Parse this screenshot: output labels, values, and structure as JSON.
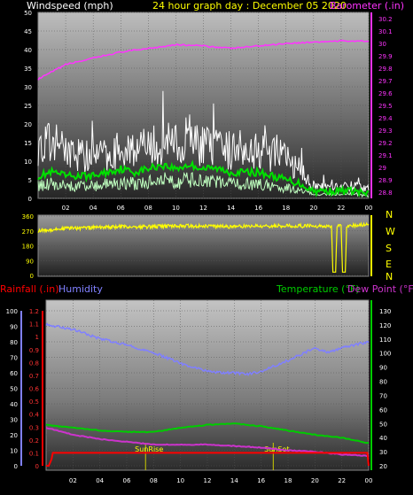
{
  "header": {
    "left": "Windspeed (mph)",
    "center": "24 hour graph day : December 05 2020",
    "right": "Barometer (.in)"
  },
  "labels": {
    "rainfall": "Rainfall (.in)",
    "humidity": "Humidity",
    "temperature": "Temperature (°F)",
    "dewpoint": "Dew Point (°F)",
    "sunrise": "SunRise",
    "sunset": "SunSet"
  },
  "colors": {
    "wind_gust": "#ffffff",
    "wind_avg": "#00e000",
    "barometer": "#ff33ff",
    "direction": "#ffff00",
    "rain": "#ff0000",
    "humidity": "#8080ff",
    "temperature": "#00cc00",
    "dewpoint": "#cc33cc",
    "header_left": "#ffffff",
    "header_center": "#ffff00",
    "header_right": "#ff33ff"
  },
  "chart_data": [
    {
      "type": "line",
      "title": "24 hour graph day : December 05 2020",
      "x_ticks": [
        "02",
        "04",
        "06",
        "08",
        "10",
        "12",
        "14",
        "16",
        "18",
        "20",
        "22",
        "00"
      ],
      "y_left": {
        "label": "Windspeed (mph)",
        "ticks": [
          0,
          5,
          10,
          15,
          20,
          25,
          30,
          35,
          40,
          45,
          50
        ],
        "range": [
          0,
          50
        ]
      },
      "y_right": {
        "label": "Barometer (.in)",
        "ticks": [
          "28.8",
          "28.9",
          "29",
          "29.1",
          "29.2",
          "29.3",
          "29.4",
          "29.5",
          "29.6",
          "29.7",
          "29.8",
          "29.9",
          "30",
          "30.1",
          "30.2"
        ],
        "range": [
          28.75,
          30.25
        ]
      },
      "series": [
        {
          "name": "Windspeed (mph)",
          "x_hours": [
            0,
            1,
            2,
            3,
            4,
            5,
            6,
            7,
            8,
            9,
            10,
            11,
            12,
            13,
            14,
            15,
            16,
            17,
            18,
            19,
            20,
            21,
            22,
            23,
            24
          ],
          "values": [
            12,
            14,
            12,
            11,
            10,
            11,
            12,
            13,
            12,
            14,
            13,
            15,
            13,
            12,
            12,
            13,
            12,
            11,
            10,
            7,
            3,
            3,
            3,
            3,
            2
          ]
        },
        {
          "name": "Windspeed avg",
          "x_hours": [
            0,
            1,
            2,
            3,
            4,
            5,
            6,
            7,
            8,
            9,
            10,
            11,
            12,
            13,
            14,
            15,
            16,
            17,
            18,
            19,
            20,
            21,
            22,
            23,
            24
          ],
          "values": [
            6,
            7,
            6,
            6,
            6,
            7,
            8,
            7,
            8,
            9,
            8,
            9,
            8,
            8,
            7,
            7,
            7,
            6,
            5,
            4,
            2,
            2,
            2,
            2,
            1
          ]
        },
        {
          "name": "Barometer (.in)",
          "x_hours": [
            0,
            2,
            4,
            6,
            8,
            10,
            12,
            14,
            16,
            18,
            20,
            22,
            24
          ],
          "values": [
            29.71,
            29.83,
            29.88,
            29.93,
            29.96,
            29.99,
            29.98,
            29.96,
            29.98,
            30.0,
            30.01,
            30.02,
            30.02
          ]
        }
      ]
    },
    {
      "type": "line",
      "x_ticks": [
        "02",
        "04",
        "06",
        "08",
        "10",
        "12",
        "14",
        "16",
        "18",
        "20",
        "22",
        "00"
      ],
      "y_left": {
        "ticks": [
          0,
          90,
          180,
          270,
          360
        ],
        "range": [
          0,
          360
        ]
      },
      "y_right": {
        "ticks": [
          "N",
          "W",
          "S",
          "E",
          "N"
        ]
      },
      "series": [
        {
          "name": "Wind direction",
          "x_hours": [
            0,
            2,
            4,
            6,
            8,
            10,
            12,
            14,
            16,
            18,
            20,
            21.3,
            21.4,
            21.6,
            21.7,
            22.0,
            22.1,
            22.3,
            22.4,
            24
          ],
          "values": [
            270,
            285,
            290,
            295,
            295,
            300,
            300,
            295,
            300,
            300,
            300,
            300,
            20,
            20,
            300,
            300,
            20,
            20,
            300,
            310
          ]
        }
      ]
    },
    {
      "type": "line",
      "x_ticks": [
        "02",
        "04",
        "06",
        "08",
        "10",
        "12",
        "14",
        "16",
        "18",
        "20",
        "22",
        "00"
      ],
      "y_left_rain": {
        "label": "Rainfall (.in)",
        "ticks": [
          "0",
          "0.1",
          "0.2",
          "0.3",
          "0.4",
          "0.5",
          "0.6",
          "0.7",
          "0.8",
          "0.9",
          "1",
          "1.1",
          "1.2"
        ],
        "range": [
          0,
          1.2
        ]
      },
      "y_left_humidity": {
        "label": "Humidity",
        "ticks": [
          0,
          10,
          20,
          30,
          40,
          50,
          60,
          70,
          80,
          90,
          100
        ],
        "range": [
          0,
          100
        ]
      },
      "y_right": {
        "label": "Temperature (°F)",
        "ticks": [
          20,
          30,
          40,
          50,
          60,
          70,
          80,
          90,
          100,
          110,
          120,
          130
        ],
        "range": [
          20,
          130
        ]
      },
      "series": [
        {
          "name": "Humidity",
          "x_hours": [
            0,
            2,
            4,
            6,
            8,
            10,
            12,
            13,
            14,
            15,
            16,
            18,
            19,
            20,
            21,
            22,
            24
          ],
          "values": [
            91,
            88,
            82,
            78,
            73,
            66,
            61,
            60,
            60,
            59,
            61,
            68,
            72,
            76,
            73,
            76,
            80
          ]
        },
        {
          "name": "Temperature (°F)",
          "x_hours": [
            0,
            2,
            4,
            6,
            8,
            10,
            12,
            14,
            16,
            18,
            20,
            22,
            24
          ],
          "values": [
            49,
            47,
            45,
            44,
            44,
            47,
            49,
            50,
            48,
            45,
            42,
            40,
            36
          ]
        },
        {
          "name": "Dew Point (°F)",
          "x_hours": [
            0,
            2,
            4,
            6,
            8,
            10,
            12,
            14,
            16,
            18,
            20,
            22,
            24
          ],
          "values": [
            47,
            42,
            39,
            37,
            35,
            35,
            35,
            34,
            33,
            31,
            30,
            28,
            27
          ]
        },
        {
          "name": "Rainfall (.in)",
          "x_hours": [
            0,
            0.2,
            0.4,
            0.5,
            1,
            6,
            12,
            18,
            23.9,
            24
          ],
          "values": [
            0,
            0,
            0.05,
            0.1,
            0.1,
            0.1,
            0.1,
            0.1,
            0.1,
            0
          ]
        }
      ],
      "annotations": [
        {
          "text": "SunRise",
          "x_hour": 7.4
        },
        {
          "text": "SunSet",
          "x_hour": 16.9
        }
      ]
    }
  ]
}
